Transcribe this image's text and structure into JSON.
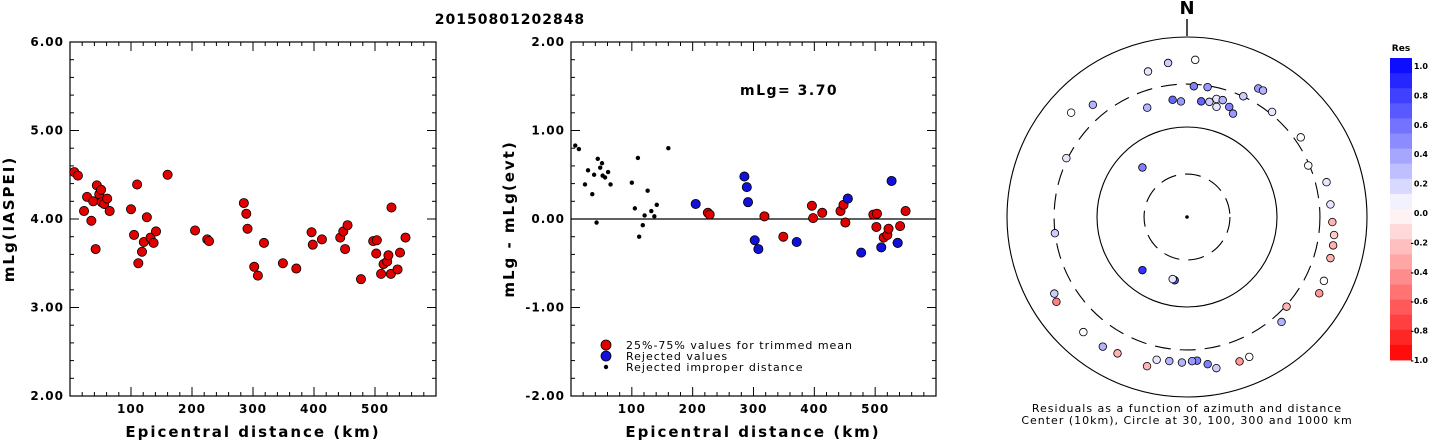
{
  "header": {
    "title": "20150801202848"
  },
  "chart_data": [
    {
      "type": "scatter",
      "id": "magnitude-vs-distance",
      "xlabel": "Epicentral distance (km)",
      "ylabel": "mLg(IASPEI)",
      "xlim": [
        0,
        600
      ],
      "ylim": [
        2.0,
        6.0
      ],
      "xticks": [
        "100",
        "200",
        "300",
        "400",
        "500"
      ],
      "yticks": [
        "2.00",
        "3.00",
        "4.00",
        "5.00",
        "6.00"
      ],
      "marker_color": "#e00000",
      "points": [
        [
          7,
          4.53
        ],
        [
          13,
          4.49
        ],
        [
          23,
          4.09
        ],
        [
          28,
          4.25
        ],
        [
          35,
          3.98
        ],
        [
          38,
          4.2
        ],
        [
          42,
          3.66
        ],
        [
          44,
          4.38
        ],
        [
          48,
          4.28
        ],
        [
          51,
          4.33
        ],
        [
          52,
          4.19
        ],
        [
          56,
          4.17
        ],
        [
          61,
          4.23
        ],
        [
          65,
          4.09
        ],
        [
          100,
          4.11
        ],
        [
          105,
          3.82
        ],
        [
          110,
          4.39
        ],
        [
          112,
          3.5
        ],
        [
          118,
          3.63
        ],
        [
          121,
          3.74
        ],
        [
          126,
          4.02
        ],
        [
          132,
          3.79
        ],
        [
          137,
          3.73
        ],
        [
          141,
          3.86
        ],
        [
          160,
          4.5
        ],
        [
          205,
          3.87
        ],
        [
          225,
          3.77
        ],
        [
          228,
          3.75
        ],
        [
          285,
          4.18
        ],
        [
          289,
          4.06
        ],
        [
          291,
          3.89
        ],
        [
          302,
          3.46
        ],
        [
          308,
          3.36
        ],
        [
          318,
          3.73
        ],
        [
          349,
          3.5
        ],
        [
          371,
          3.44
        ],
        [
          396,
          3.85
        ],
        [
          398,
          3.71
        ],
        [
          413,
          3.77
        ],
        [
          443,
          3.79
        ],
        [
          448,
          3.86
        ],
        [
          451,
          3.66
        ],
        [
          455,
          3.93
        ],
        [
          477,
          3.32
        ],
        [
          497,
          3.75
        ],
        [
          502,
          3.61
        ],
        [
          503,
          3.76
        ],
        [
          510,
          3.38
        ],
        [
          514,
          3.49
        ],
        [
          520,
          3.52
        ],
        [
          522,
          3.59
        ],
        [
          526,
          3.38
        ],
        [
          527,
          4.13
        ],
        [
          537,
          3.43
        ],
        [
          541,
          3.62
        ],
        [
          550,
          3.79
        ]
      ]
    },
    {
      "type": "scatter",
      "id": "residual-vs-distance",
      "xlabel": "Epicentral distance (km)",
      "ylabel": "mLg - mLg(evt)",
      "xlim": [
        0,
        600
      ],
      "ylim": [
        -2.0,
        2.0
      ],
      "xticks": [
        "100",
        "200",
        "300",
        "400",
        "500"
      ],
      "yticks": [
        "-2.00",
        "-1.00",
        "0.00",
        "1.00",
        "2.00"
      ],
      "annotation": "mLg= 3.70",
      "legend": {
        "placement": "bottom-left",
        "entries": [
          "25%-75% values for trimmed mean",
          "Rejected values",
          "Rejected improper distance"
        ]
      },
      "colors": {
        "trimmed": "#e00000",
        "rejected": "#1010d8",
        "improper": "#000000"
      },
      "series": [
        {
          "name": "25%-75% values for trimmed mean",
          "points": [
            [
              225,
              0.07
            ],
            [
              228,
              0.05
            ],
            [
              318,
              0.03
            ],
            [
              349,
              -0.2
            ],
            [
              396,
              0.15
            ],
            [
              398,
              0.01
            ],
            [
              413,
              0.07
            ],
            [
              443,
              0.09
            ],
            [
              448,
              0.16
            ],
            [
              451,
              -0.04
            ],
            [
              455,
              0.23
            ],
            [
              497,
              0.05
            ],
            [
              502,
              -0.09
            ],
            [
              503,
              0.06
            ],
            [
              514,
              -0.21
            ],
            [
              520,
              -0.18
            ],
            [
              522,
              -0.11
            ],
            [
              537,
              -0.27
            ],
            [
              541,
              -0.08
            ],
            [
              550,
              0.09
            ]
          ]
        },
        {
          "name": "Rejected values",
          "points": [
            [
              205,
              0.17
            ],
            [
              285,
              0.48
            ],
            [
              289,
              0.36
            ],
            [
              291,
              0.19
            ],
            [
              302,
              -0.24
            ],
            [
              308,
              -0.34
            ],
            [
              371,
              -0.26
            ],
            [
              455,
              0.23
            ],
            [
              477,
              -0.38
            ],
            [
              510,
              -0.32
            ],
            [
              527,
              0.43
            ],
            [
              537,
              -0.27
            ]
          ]
        },
        {
          "name": "Rejected improper distance",
          "points": [
            [
              7,
              0.83
            ],
            [
              13,
              0.79
            ],
            [
              23,
              0.39
            ],
            [
              28,
              0.55
            ],
            [
              35,
              0.28
            ],
            [
              38,
              0.5
            ],
            [
              42,
              -0.04
            ],
            [
              44,
              0.68
            ],
            [
              48,
              0.58
            ],
            [
              51,
              0.63
            ],
            [
              52,
              0.49
            ],
            [
              56,
              0.47
            ],
            [
              61,
              0.53
            ],
            [
              65,
              0.39
            ],
            [
              100,
              0.41
            ],
            [
              105,
              0.12
            ],
            [
              110,
              0.69
            ],
            [
              112,
              -0.2
            ],
            [
              118,
              -0.07
            ],
            [
              121,
              0.04
            ],
            [
              126,
              0.32
            ],
            [
              132,
              0.09
            ],
            [
              137,
              0.03
            ],
            [
              141,
              0.16
            ],
            [
              160,
              0.8
            ]
          ]
        }
      ]
    },
    {
      "type": "scatter",
      "id": "azimuth-residual-map",
      "north_label": "N",
      "caption_line1": "Residuals as a function of azimuth and distance",
      "caption_line2": "Center (10km), Circle at 30, 100, 300 and 1000 km",
      "rings_km": [
        30,
        100,
        300,
        1000
      ],
      "colorbar": {
        "title": "Res",
        "labels": [
          "1.0",
          "0.8",
          "0.6",
          "0.4",
          "0.2",
          "0.0",
          "-0.2",
          "-0.4",
          "-0.6",
          "-0.8",
          "-1.0"
        ],
        "max_color": "#0000ff",
        "zero_color": "#ffffff",
        "min_color": "#ff0000"
      },
      "points": [
        {
          "az": 353,
          "dist": 205,
          "res": 0.6
        },
        {
          "az": 3,
          "dist": 285,
          "res": 0.5
        },
        {
          "az": 9,
          "dist": 289,
          "res": 0.4
        },
        {
          "az": 14,
          "dist": 225,
          "res": 0.1
        },
        {
          "az": 17,
          "dist": 228,
          "res": 0.3
        },
        {
          "az": 25,
          "dist": 302,
          "res": 0.2
        },
        {
          "az": 39,
          "dist": 318,
          "res": 0.1
        },
        {
          "az": 55,
          "dist": 349,
          "res": 0.0
        },
        {
          "az": 67,
          "dist": 291,
          "res": 0.0
        },
        {
          "az": 76,
          "dist": 396,
          "res": 0.1
        },
        {
          "az": 85,
          "dist": 398,
          "res": 0.1
        },
        {
          "az": 92,
          "dist": 413,
          "res": -0.3
        },
        {
          "az": 97,
          "dist": 443,
          "res": -0.2
        },
        {
          "az": 101,
          "dist": 451,
          "res": -0.3
        },
        {
          "az": 106,
          "dist": 455,
          "res": -0.3
        },
        {
          "az": 115,
          "dist": 477,
          "res": 0.0
        },
        {
          "az": 120,
          "dist": 497,
          "res": -0.4
        },
        {
          "az": 132,
          "dist": 308,
          "res": -0.3
        },
        {
          "az": 138,
          "dist": 371,
          "res": 0.3
        },
        {
          "az": 156,
          "dist": 503,
          "res": 0.0
        },
        {
          "az": 160,
          "dist": 510,
          "res": -0.4
        },
        {
          "az": 169,
          "dist": 514,
          "res": 0.2
        },
        {
          "az": 172,
          "dist": 448,
          "res": 0.5
        },
        {
          "az": 176,
          "dist": 398,
          "res": 0.5
        },
        {
          "az": 178,
          "dist": 401,
          "res": 0.4
        },
        {
          "az": 182,
          "dist": 415,
          "res": 0.3
        },
        {
          "az": 187,
          "dist": 410,
          "res": 0.3
        },
        {
          "az": 192,
          "dist": 419,
          "res": 0.1
        },
        {
          "az": 195,
          "dist": 520,
          "res": -0.3
        },
        {
          "az": 207,
          "dist": 502,
          "res": -0.3
        },
        {
          "az": 213,
          "dist": 522,
          "res": 0.3
        },
        {
          "az": 222,
          "dist": 526,
          "res": 0.0
        },
        {
          "az": 237,
          "dist": 537,
          "res": -0.5
        },
        {
          "az": 240,
          "dist": 504,
          "res": 0.2
        },
        {
          "az": 263,
          "dist": 301,
          "res": 0.2
        },
        {
          "az": 296,
          "dist": 310,
          "res": 0.1
        },
        {
          "az": 312,
          "dist": 540,
          "res": 0.0
        },
        {
          "az": 320,
          "dist": 424,
          "res": 0.3
        },
        {
          "az": 345,
          "dist": 472,
          "res": 0.1
        },
        {
          "az": 353,
          "dist": 530,
          "res": 0.2
        },
        {
          "az": 3,
          "dist": 560,
          "res": 0.0
        },
        {
          "az": 29,
          "dist": 430,
          "res": 0.4
        },
        {
          "az": 31,
          "dist": 436,
          "res": 0.3
        },
        {
          "az": 191,
          "dist": 52,
          "res": 0.7
        },
        {
          "az": 318,
          "dist": 55,
          "res": 0.5
        },
        {
          "az": 220,
          "dist": 59,
          "res": 0.8
        },
        {
          "az": 193,
          "dist": 51,
          "res": 0.1
        },
        {
          "az": 340,
          "dist": 196,
          "res": 0.3
        },
        {
          "az": 357,
          "dist": 193,
          "res": 0.4
        },
        {
          "az": 7,
          "dist": 197,
          "res": 0.6
        },
        {
          "az": 11,
          "dist": 201,
          "res": 0.2
        },
        {
          "az": 21,
          "dist": 204,
          "res": 0.5
        },
        {
          "az": 15,
          "dist": 185,
          "res": 0.1
        },
        {
          "az": 24,
          "dist": 181,
          "res": 0.4
        }
      ]
    }
  ]
}
